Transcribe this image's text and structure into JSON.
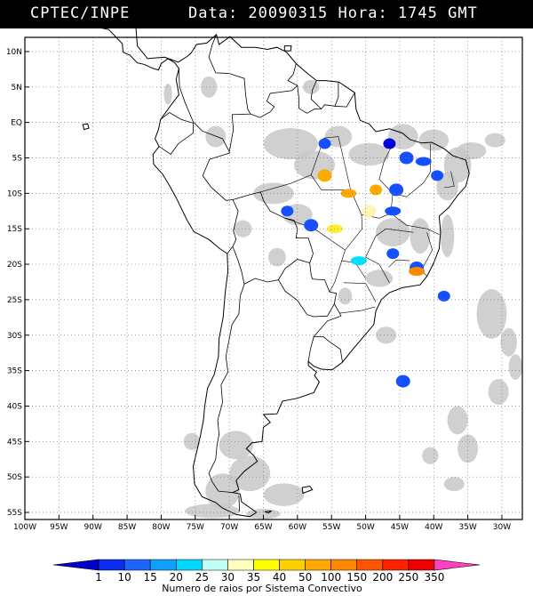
{
  "header": {
    "left": "CPTEC/INPE",
    "right": "Data: 20090315 Hora: 1745 GMT"
  },
  "map": {
    "lat_labels": [
      "10N",
      "5N",
      "EQ",
      "5S",
      "10S",
      "15S",
      "20S",
      "25S",
      "30S",
      "35S",
      "40S",
      "45S",
      "50S",
      "55S"
    ],
    "lon_labels": [
      "100W",
      "95W",
      "90W",
      "85W",
      "80W",
      "75W",
      "70W",
      "65W",
      "60W",
      "55W",
      "50W",
      "45W",
      "40W",
      "35W",
      "30W"
    ],
    "lat_values": [
      10,
      5,
      0,
      -5,
      -10,
      -15,
      -20,
      -25,
      -30,
      -35,
      -40,
      -45,
      -50,
      -55
    ],
    "lon_values": [
      -100,
      -95,
      -90,
      -85,
      -80,
      -75,
      -70,
      -65,
      -60,
      -55,
      -50,
      -45,
      -40,
      -35,
      -30
    ],
    "extent": {
      "lon_min": -100,
      "lon_max": -27,
      "lat_min": -56,
      "lat_max": 12
    },
    "gridlines": true,
    "cloud_color": "#c8c8c8",
    "systems": [
      {
        "lon": -46.5,
        "lat": -3.0,
        "color": "#0000dd"
      },
      {
        "lon": -44.0,
        "lat": -5.0,
        "color": "#1450ff"
      },
      {
        "lon": -41.5,
        "lat": -5.5,
        "color": "#1450ff"
      },
      {
        "lon": -39.5,
        "lat": -7.5,
        "color": "#1450ff"
      },
      {
        "lon": -45.5,
        "lat": -9.5,
        "color": "#1450ff"
      },
      {
        "lon": -46.0,
        "lat": -12.5,
        "color": "#1450ff"
      },
      {
        "lon": -56.0,
        "lat": -3.0,
        "color": "#1450ff"
      },
      {
        "lon": -56.0,
        "lat": -7.5,
        "color": "#ffaa00"
      },
      {
        "lon": -52.5,
        "lat": -10.0,
        "color": "#ffaa00"
      },
      {
        "lon": -48.5,
        "lat": -9.5,
        "color": "#ffaa00"
      },
      {
        "lon": -49.5,
        "lat": -12.5,
        "color": "#fff3b8"
      },
      {
        "lon": -54.5,
        "lat": -15.0,
        "color": "#ffee33"
      },
      {
        "lon": -61.5,
        "lat": -12.5,
        "color": "#1450ff"
      },
      {
        "lon": -58.0,
        "lat": -14.5,
        "color": "#1450ff"
      },
      {
        "lon": -51.0,
        "lat": -19.5,
        "color": "#00e0ff"
      },
      {
        "lon": -46.0,
        "lat": -18.5,
        "color": "#1450ff"
      },
      {
        "lon": -42.5,
        "lat": -20.5,
        "color": "#1450ff"
      },
      {
        "lon": -42.5,
        "lat": -21.0,
        "color": "#ff8800"
      },
      {
        "lon": -38.5,
        "lat": -24.5,
        "color": "#1450ff"
      },
      {
        "lon": -44.5,
        "lat": -36.5,
        "color": "#1450ff"
      }
    ]
  },
  "legend": {
    "labels": [
      "1",
      "10",
      "15",
      "20",
      "25",
      "30",
      "35",
      "40",
      "50",
      "100",
      "150",
      "200",
      "250",
      "350"
    ],
    "colors": [
      "#0000c8",
      "#0a2ef0",
      "#1e64ff",
      "#10a0ff",
      "#00d8ff",
      "#c0fff8",
      "#ffffc0",
      "#ffff00",
      "#ffd000",
      "#ffa800",
      "#ff8800",
      "#ff5500",
      "#ff2200",
      "#ee0000",
      "#ff40c0"
    ],
    "caption": "Numero de raios por Sistema Convectivo"
  }
}
